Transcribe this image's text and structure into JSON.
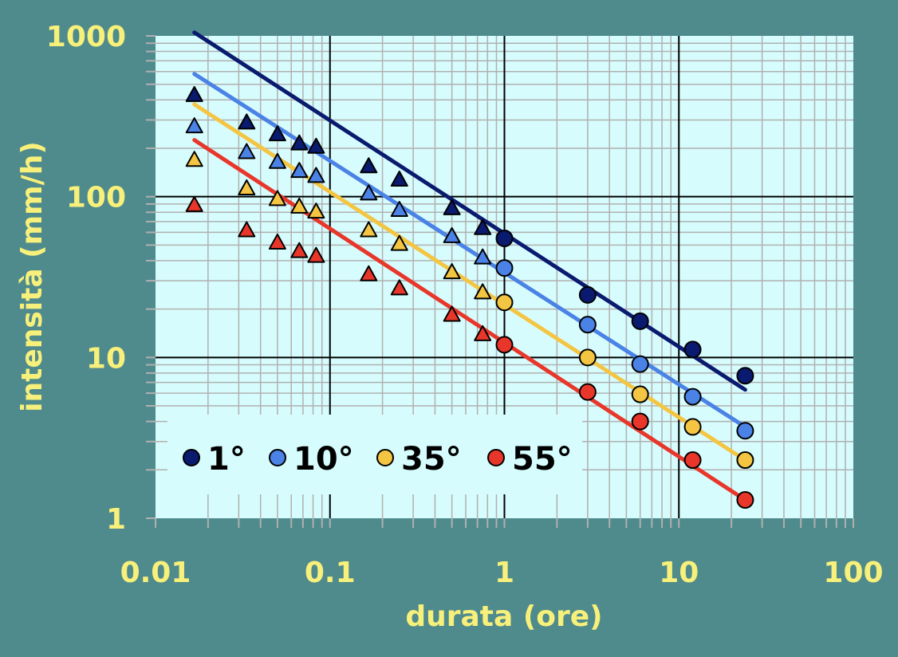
{
  "chart_data": {
    "type": "scatter",
    "xlabel": "durata (ore)",
    "ylabel": "intensità (mm/h)",
    "xscale": "log",
    "yscale": "log",
    "xlim": [
      0.01,
      100
    ],
    "ylim": [
      1,
      1000
    ],
    "x_ticks": [
      {
        "value": 0.01,
        "label": "0.01"
      },
      {
        "value": 0.1,
        "label": "0.1"
      },
      {
        "value": 1,
        "label": "1"
      },
      {
        "value": 10,
        "label": "10"
      },
      {
        "value": 100,
        "label": "100"
      }
    ],
    "y_ticks": [
      {
        "value": 1,
        "label": "1"
      },
      {
        "value": 10,
        "label": "10"
      },
      {
        "value": 100,
        "label": "100"
      },
      {
        "value": 1000,
        "label": "1000"
      }
    ],
    "grid": true,
    "legend_position": "bottom-left",
    "colors": {
      "plot_background": "#d7fcfd",
      "figure_background": "#4f8a8d",
      "grid_minor": "#b0b0b0",
      "grid_major": "#000000",
      "label_color": "#f7f07a"
    },
    "series": [
      {
        "name": "1°",
        "color": "#0a1a6e",
        "triangles": [
          [
            0.0167,
            430
          ],
          [
            0.0333,
            290
          ],
          [
            0.05,
            245
          ],
          [
            0.0667,
            215
          ],
          [
            0.0833,
            205
          ],
          [
            0.1667,
            155
          ],
          [
            0.25,
            128
          ],
          [
            0.5,
            85
          ],
          [
            0.75,
            64
          ]
        ],
        "circles": [
          [
            1,
            55
          ],
          [
            3,
            24.5
          ],
          [
            6,
            16.8
          ],
          [
            12,
            11.2
          ],
          [
            24,
            7.7
          ]
        ],
        "fit_line": [
          [
            0.0167,
            1050
          ],
          [
            24,
            6.3
          ]
        ]
      },
      {
        "name": "10°",
        "color": "#4a82e6",
        "triangles": [
          [
            0.0167,
            275
          ],
          [
            0.0333,
            190
          ],
          [
            0.05,
            165
          ],
          [
            0.0667,
            145
          ],
          [
            0.0833,
            135
          ],
          [
            0.1667,
            105
          ],
          [
            0.25,
            83
          ],
          [
            0.5,
            57
          ],
          [
            0.75,
            42
          ]
        ],
        "circles": [
          [
            1,
            36
          ],
          [
            3,
            16
          ],
          [
            6,
            9.1
          ],
          [
            12,
            5.7
          ],
          [
            24,
            3.5
          ]
        ],
        "fit_line": [
          [
            0.0167,
            580
          ],
          [
            24,
            3.7
          ]
        ]
      },
      {
        "name": "35°",
        "color": "#f4c542",
        "triangles": [
          [
            0.0167,
            170
          ],
          [
            0.0333,
            113
          ],
          [
            0.05,
            97
          ],
          [
            0.0667,
            87
          ],
          [
            0.0833,
            81
          ],
          [
            0.1667,
            62
          ],
          [
            0.25,
            51
          ],
          [
            0.5,
            34
          ],
          [
            0.75,
            25.5
          ]
        ],
        "circles": [
          [
            1,
            22
          ],
          [
            3,
            10
          ],
          [
            6,
            5.9
          ],
          [
            12,
            3.7
          ],
          [
            24,
            2.3
          ]
        ],
        "fit_line": [
          [
            0.0167,
            375
          ],
          [
            24,
            2.3
          ]
        ]
      },
      {
        "name": "55°",
        "color": "#e8372a",
        "triangles": [
          [
            0.0167,
            89
          ],
          [
            0.0333,
            62
          ],
          [
            0.05,
            52
          ],
          [
            0.0667,
            46
          ],
          [
            0.0833,
            43
          ],
          [
            0.1667,
            33
          ],
          [
            0.25,
            27
          ],
          [
            0.5,
            18.5
          ],
          [
            0.75,
            14
          ]
        ],
        "circles": [
          [
            1,
            12
          ],
          [
            3,
            6.1
          ],
          [
            6,
            4
          ],
          [
            12,
            2.3
          ],
          [
            24,
            1.3
          ]
        ],
        "fit_line": [
          [
            0.0167,
            225
          ],
          [
            24,
            1.3
          ]
        ]
      }
    ]
  }
}
